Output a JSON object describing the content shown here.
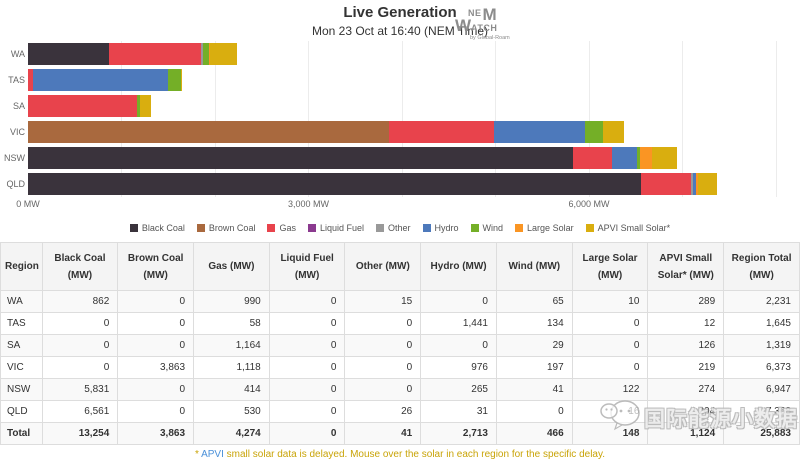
{
  "header": {
    "title": "Live Generation",
    "subtitle": "Mon 23 Oct at 16:40 (NEM Time)",
    "logo": {
      "ne": "NE",
      "m": "M",
      "w": "W",
      "atch": "ATCH",
      "byline": "by Global-Roam"
    }
  },
  "chart_data": {
    "type": "bar",
    "orientation": "horizontal",
    "stacked": true,
    "categories": [
      "WA",
      "TAS",
      "SA",
      "VIC",
      "NSW",
      "QLD"
    ],
    "series": [
      {
        "name": "Black Coal",
        "color": "#3a333c",
        "values": [
          862,
          0,
          0,
          0,
          5831,
          6561
        ]
      },
      {
        "name": "Brown Coal",
        "color": "#a9693e",
        "values": [
          0,
          0,
          0,
          3863,
          0,
          0
        ]
      },
      {
        "name": "Gas",
        "color": "#e8434c",
        "values": [
          990,
          58,
          1164,
          1118,
          414,
          530
        ]
      },
      {
        "name": "Liquid Fuel",
        "color": "#8b3a8f",
        "values": [
          0,
          0,
          0,
          0,
          0,
          0
        ]
      },
      {
        "name": "Other",
        "color": "#999999",
        "values": [
          15,
          0,
          0,
          0,
          0,
          26
        ]
      },
      {
        "name": "Hydro",
        "color": "#4d79bb",
        "values": [
          0,
          1441,
          0,
          976,
          265,
          31
        ]
      },
      {
        "name": "Wind",
        "color": "#74af27",
        "values": [
          65,
          134,
          29,
          197,
          41,
          0
        ]
      },
      {
        "name": "Large Solar",
        "color": "#fa9523",
        "values": [
          10,
          0,
          0,
          0,
          122,
          16
        ]
      },
      {
        "name": "APVI Small Solar*",
        "color": "#d9ae0f",
        "values": [
          289,
          12,
          126,
          219,
          274,
          204
        ]
      }
    ],
    "x_axis": {
      "unit": "MW",
      "max": 8150,
      "gridline_interval": 1000,
      "ticks": [
        {
          "value": 0,
          "label": "0 MW"
        },
        {
          "value": 3000,
          "label": "3,000 MW"
        },
        {
          "value": 6000,
          "label": "6,000 MW"
        }
      ]
    },
    "legend_position": "bottom",
    "region_totals": [
      2231,
      1645,
      1319,
      6373,
      6947,
      7368
    ]
  },
  "table": {
    "columns": [
      "Region",
      "Black Coal (MW)",
      "Brown Coal (MW)",
      "Gas (MW)",
      "Liquid Fuel (MW)",
      "Other (MW)",
      "Hydro (MW)",
      "Wind (MW)",
      "Large Solar (MW)",
      "APVI Small Solar* (MW)",
      "Region Total (MW)"
    ],
    "rows": [
      {
        "region": "WA",
        "values": [
          "862",
          "0",
          "990",
          "0",
          "15",
          "0",
          "65",
          "10",
          "289",
          "2,231"
        ]
      },
      {
        "region": "TAS",
        "values": [
          "0",
          "0",
          "58",
          "0",
          "0",
          "1,441",
          "134",
          "0",
          "12",
          "1,645"
        ]
      },
      {
        "region": "SA",
        "values": [
          "0",
          "0",
          "1,164",
          "0",
          "0",
          "0",
          "29",
          "0",
          "126",
          "1,319"
        ]
      },
      {
        "region": "VIC",
        "values": [
          "0",
          "3,863",
          "1,118",
          "0",
          "0",
          "976",
          "197",
          "0",
          "219",
          "6,373"
        ]
      },
      {
        "region": "NSW",
        "values": [
          "5,831",
          "0",
          "414",
          "0",
          "0",
          "265",
          "41",
          "122",
          "274",
          "6,947"
        ]
      },
      {
        "region": "QLD",
        "values": [
          "6,561",
          "0",
          "530",
          "0",
          "26",
          "31",
          "0",
          "16",
          "204",
          "7,368"
        ]
      }
    ],
    "total_row": {
      "region": "Total",
      "values": [
        "13,254",
        "3,863",
        "4,274",
        "0",
        "41",
        "2,713",
        "466",
        "148",
        "1,124",
        "25,883"
      ]
    }
  },
  "footnote": {
    "prefix": "* ",
    "link_text": "APVI",
    "rest": " small solar data is delayed. Mouse over the solar in each region for the specific delay."
  },
  "watermark": {
    "text": "国际能源小数据"
  }
}
